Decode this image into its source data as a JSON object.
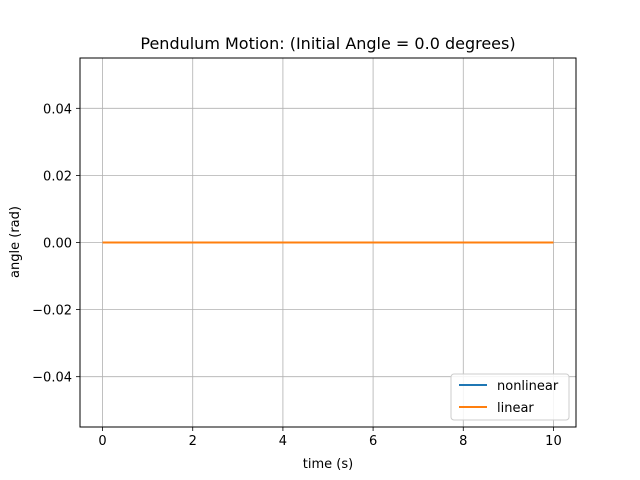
{
  "chart_data": {
    "type": "line",
    "title": "Pendulum Motion: (Initial Angle = 0.0 degrees)",
    "xlabel": "time (s)",
    "ylabel": "angle (rad)",
    "xlim": [
      -0.5,
      10.5
    ],
    "ylim": [
      -0.055,
      0.055
    ],
    "xticks": [
      0,
      2,
      4,
      6,
      8,
      10
    ],
    "xtick_labels": [
      "0",
      "2",
      "4",
      "6",
      "8",
      "10"
    ],
    "yticks": [
      -0.04,
      -0.02,
      0.0,
      0.02,
      0.04
    ],
    "ytick_labels": [
      "−0.04",
      "−0.02",
      "0.00",
      "0.02",
      "0.04"
    ],
    "grid": true,
    "legend_position": "lower right",
    "series": [
      {
        "name": "nonlinear",
        "color": "#1f77b4",
        "x": [
          0,
          10
        ],
        "y": [
          0.0,
          0.0
        ]
      },
      {
        "name": "linear",
        "color": "#ff7f0e",
        "x": [
          0,
          10
        ],
        "y": [
          0.0,
          0.0
        ]
      }
    ]
  }
}
